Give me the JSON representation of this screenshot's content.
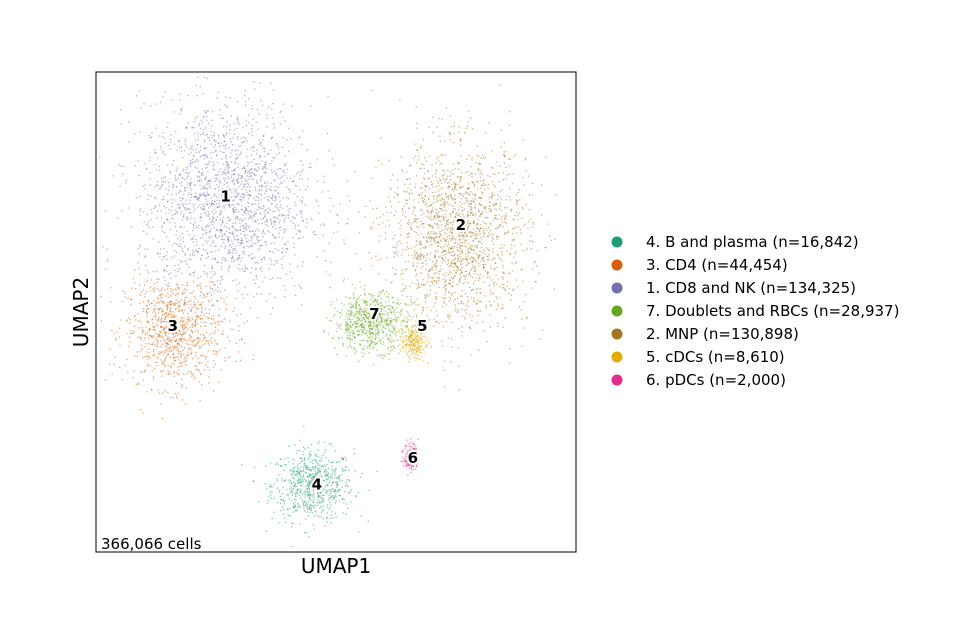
{
  "chart_data": {
    "type": "scatter",
    "xlabel": "UMAP1",
    "ylabel": "UMAP2",
    "footnote": "366,066 cells",
    "grid": false,
    "legend_position": "right",
    "clusters": [
      {
        "id": "4",
        "name": "4. B and plasma (n=16,842)",
        "color": "#1b9e77",
        "center": [
          4.5,
          1.4
        ],
        "spread": [
          0.85,
          0.75
        ]
      },
      {
        "id": "3",
        "name": "3. CD4 (n=44,454)",
        "color": "#d95f02",
        "center": [
          1.6,
          4.6
        ],
        "spread": [
          1.0,
          1.15
        ]
      },
      {
        "id": "1",
        "name": "1. CD8 and NK (n=134,325)",
        "color": "#7570b3",
        "center": [
          2.7,
          7.3
        ],
        "spread": [
          1.8,
          2.1
        ]
      },
      {
        "id": "7",
        "name": "7. Doublets and RBCs (n=28,937)",
        "color": "#66a61e",
        "center": [
          5.7,
          4.8
        ],
        "spread": [
          0.75,
          0.6
        ]
      },
      {
        "id": "2",
        "name": "2. MNP (n=130,898)",
        "color": "#a6761d",
        "center": [
          7.5,
          6.6
        ],
        "spread": [
          1.5,
          1.9
        ]
      },
      {
        "id": "5",
        "name": "5. cDCs (n=8,610)",
        "color": "#e6ab02",
        "center": [
          6.6,
          4.4
        ],
        "spread": [
          0.25,
          0.35
        ]
      },
      {
        "id": "6",
        "name": "6. pDCs (n=2,000)",
        "color": "#e7298a",
        "center": [
          6.55,
          2.0
        ],
        "spread": [
          0.15,
          0.3
        ]
      }
    ],
    "cluster_labels": [
      {
        "text": "1",
        "x": 2.7,
        "y": 7.4
      },
      {
        "text": "2",
        "x": 7.6,
        "y": 6.8
      },
      {
        "text": "3",
        "x": 1.6,
        "y": 4.7
      },
      {
        "text": "4",
        "x": 4.6,
        "y": 1.4
      },
      {
        "text": "5",
        "x": 6.8,
        "y": 4.7
      },
      {
        "text": "6",
        "x": 6.6,
        "y": 1.95
      },
      {
        "text": "7",
        "x": 5.8,
        "y": 4.95
      }
    ],
    "xlim": [
      0,
      10
    ],
    "ylim": [
      0,
      10
    ]
  }
}
